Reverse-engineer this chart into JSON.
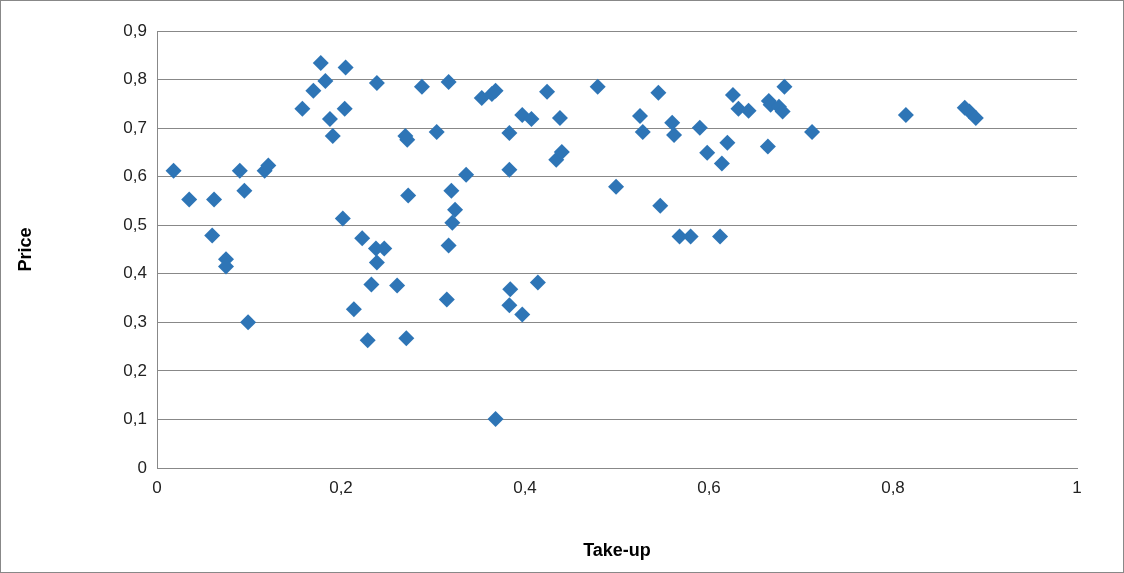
{
  "chart_data": {
    "type": "scatter",
    "xlabel": "Take-up",
    "ylabel": "Price",
    "marker": "diamond",
    "grid": "y",
    "legend": false,
    "xlim": [
      0,
      1
    ],
    "ylim": [
      0,
      0.9
    ],
    "xticks": [
      0,
      {
        "value": 0.2,
        "label": "0,2"
      },
      {
        "value": 0.4,
        "label": "0,4"
      },
      {
        "value": 0.6,
        "label": "0,6"
      },
      {
        "value": 0.8,
        "label": "0,8"
      },
      1
    ],
    "yticks": [
      0,
      {
        "value": 0.1,
        "label": "0,1"
      },
      {
        "value": 0.2,
        "label": "0,2"
      },
      {
        "value": 0.3,
        "label": "0,3"
      },
      {
        "value": 0.4,
        "label": "0,4"
      },
      {
        "value": 0.5,
        "label": "0,5"
      },
      {
        "value": 0.6,
        "label": "0,6"
      },
      {
        "value": 0.7,
        "label": "0,7"
      },
      {
        "value": 0.8,
        "label": "0,8"
      },
      {
        "value": 0.9,
        "label": "0,9"
      }
    ],
    "series": [
      {
        "color": "#2e75b6",
        "x": [
          0.018,
          0.035,
          0.062,
          0.06,
          0.075,
          0.075,
          0.09,
          0.095,
          0.099,
          0.117,
          0.121,
          0.158,
          0.17,
          0.178,
          0.183,
          0.188,
          0.191,
          0.204,
          0.205,
          0.202,
          0.223,
          0.214,
          0.229,
          0.233,
          0.239,
          0.238,
          0.247,
          0.239,
          0.261,
          0.27,
          0.272,
          0.273,
          0.271,
          0.288,
          0.304,
          0.317,
          0.315,
          0.317,
          0.32,
          0.324,
          0.321,
          0.336,
          0.353,
          0.364,
          0.368,
          0.368,
          0.383,
          0.383,
          0.384,
          0.383,
          0.397,
          0.397,
          0.407,
          0.414,
          0.424,
          0.438,
          0.434,
          0.44,
          0.479,
          0.499,
          0.525,
          0.528,
          0.545,
          0.547,
          0.56,
          0.562,
          0.568,
          0.58,
          0.59,
          0.598,
          0.614,
          0.612,
          0.62,
          0.626,
          0.632,
          0.643,
          0.665,
          0.667,
          0.664,
          0.676,
          0.68,
          0.682,
          0.712,
          0.814,
          0.878,
          0.883,
          0.89
        ],
        "values": [
          0.612,
          0.553,
          0.553,
          0.479,
          0.43,
          0.415,
          0.612,
          0.571,
          0.3,
          0.612,
          0.623,
          0.74,
          0.777,
          0.834,
          0.797,
          0.719,
          0.684,
          0.74,
          0.825,
          0.514,
          0.473,
          0.327,
          0.263,
          0.378,
          0.423,
          0.452,
          0.452,
          0.793,
          0.376,
          0.684,
          0.676,
          0.561,
          0.267,
          0.785,
          0.692,
          0.795,
          0.347,
          0.458,
          0.571,
          0.532,
          0.505,
          0.604,
          0.762,
          0.77,
          0.777,
          0.101,
          0.69,
          0.614,
          0.368,
          0.335,
          0.316,
          0.727,
          0.719,
          0.382,
          0.775,
          0.721,
          0.635,
          0.651,
          0.785,
          0.579,
          0.725,
          0.692,
          0.773,
          0.54,
          0.711,
          0.686,
          0.477,
          0.477,
          0.701,
          0.649,
          0.627,
          0.477,
          0.67,
          0.768,
          0.74,
          0.736,
          0.756,
          0.748,
          0.662,
          0.744,
          0.734,
          0.785,
          0.692,
          0.727,
          0.742,
          0.734,
          0.721
        ]
      }
    ]
  }
}
